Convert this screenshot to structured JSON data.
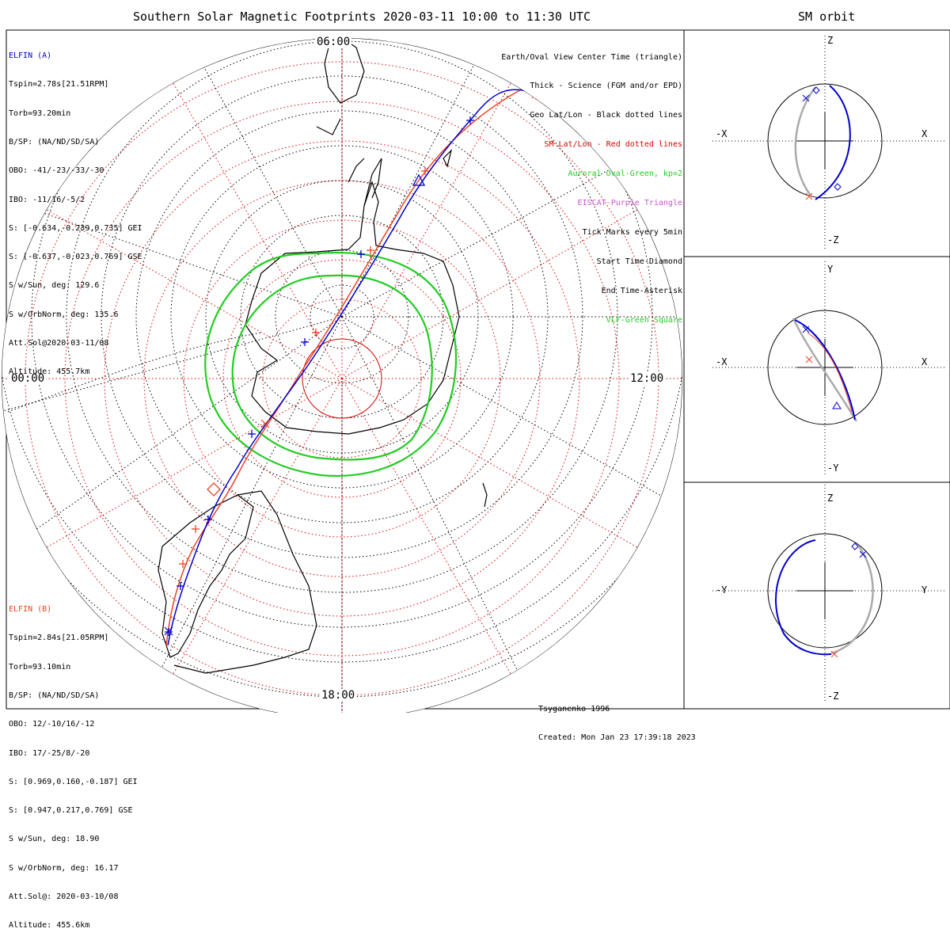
{
  "header": {
    "title": "Southern Solar Magnetic Footprints 2020-03-11 10:00 to 11:30 UTC",
    "orbit_title": "SM orbit"
  },
  "elfin_a": {
    "name": "ELFIN (A)",
    "lines": [
      "Tspin=2.78s[21.51RPM]",
      "Torb=93.20min",
      "B/SP: (NA/ND/SD/SA)",
      "OBO: -41/-23/-33/-30",
      "IBO: -11/16/-5/2",
      "S: [-0.634,-0.239,0.735] GEI",
      "S: [-0.637,-0.023,0.769] GSE",
      "S w/Sun, deg: 129.6",
      "S w/OrbNorm, deg: 135.6",
      "Att.Sol@2020-03-11/08",
      "Altitude: 455.7km"
    ]
  },
  "elfin_b": {
    "name": "ELFIN (B)",
    "lines": [
      "Tspin=2.84s[21.05RPM]",
      "Torb=93.10min",
      "B/SP: (NA/ND/SD/SA)",
      "OBO: 12/-10/16/-12",
      "IBO: 17/-25/8/-20",
      "S: [0.969,0.160,-0.187] GEI",
      "S: [0.947,0.217,0.769] GSE",
      "S w/Sun, deg: 18.90",
      "S w/OrbNorm, deg: 16.17",
      "Att.Sol@: 2020-03-10/08",
      "Altitude: 455.6km"
    ]
  },
  "legend": {
    "items": [
      {
        "text": "Earth/Oval View Center Time (triangle)",
        "color": "#000000"
      },
      {
        "text": "Thick - Science (FGM and/or EPD)",
        "color": "#000000"
      },
      {
        "text": "Geo Lat/Lon - Black dotted lines",
        "color": "#000000"
      },
      {
        "text": "SM Lat/Lon - Red dotted lines",
        "color": "#e00000"
      },
      {
        "text": "Auroral Oval-Green, kp=2",
        "color": "#22cc22"
      },
      {
        "text": "EISCAT-Purple Triangle",
        "color": "#cc55cc"
      },
      {
        "text": "Tick Marks every 5min",
        "color": "#000000"
      },
      {
        "text": "Start Time-Diamond",
        "color": "#000000"
      },
      {
        "text": "End Time-Asterisk",
        "color": "#000000"
      },
      {
        "text": "VLF-Green Square",
        "color": "#22cc22"
      }
    ]
  },
  "map": {
    "top_label": "06:00",
    "left_label": "00:00",
    "right_label": "12:00",
    "bottom_label": "18:00"
  },
  "panels": [
    {
      "left": "-X",
      "right": "X",
      "top": "Z",
      "bottom": "-Z"
    },
    {
      "left": "-X",
      "right": "X",
      "top": "Y",
      "bottom": "-Y"
    },
    {
      "left": "-Y",
      "right": "Y",
      "top": "Z",
      "bottom": "-Z"
    }
  ],
  "footer": {
    "model": "Tsyganenko-1996",
    "created": "Created: Mon Jan 23 17:39:18 2023"
  },
  "colors": {
    "elfin_a": "#0000cc",
    "elfin_b": "#ee4422",
    "oval": "#22cc22",
    "sm_grid": "#e00000",
    "orbit_gray": "#aaaaaa"
  }
}
